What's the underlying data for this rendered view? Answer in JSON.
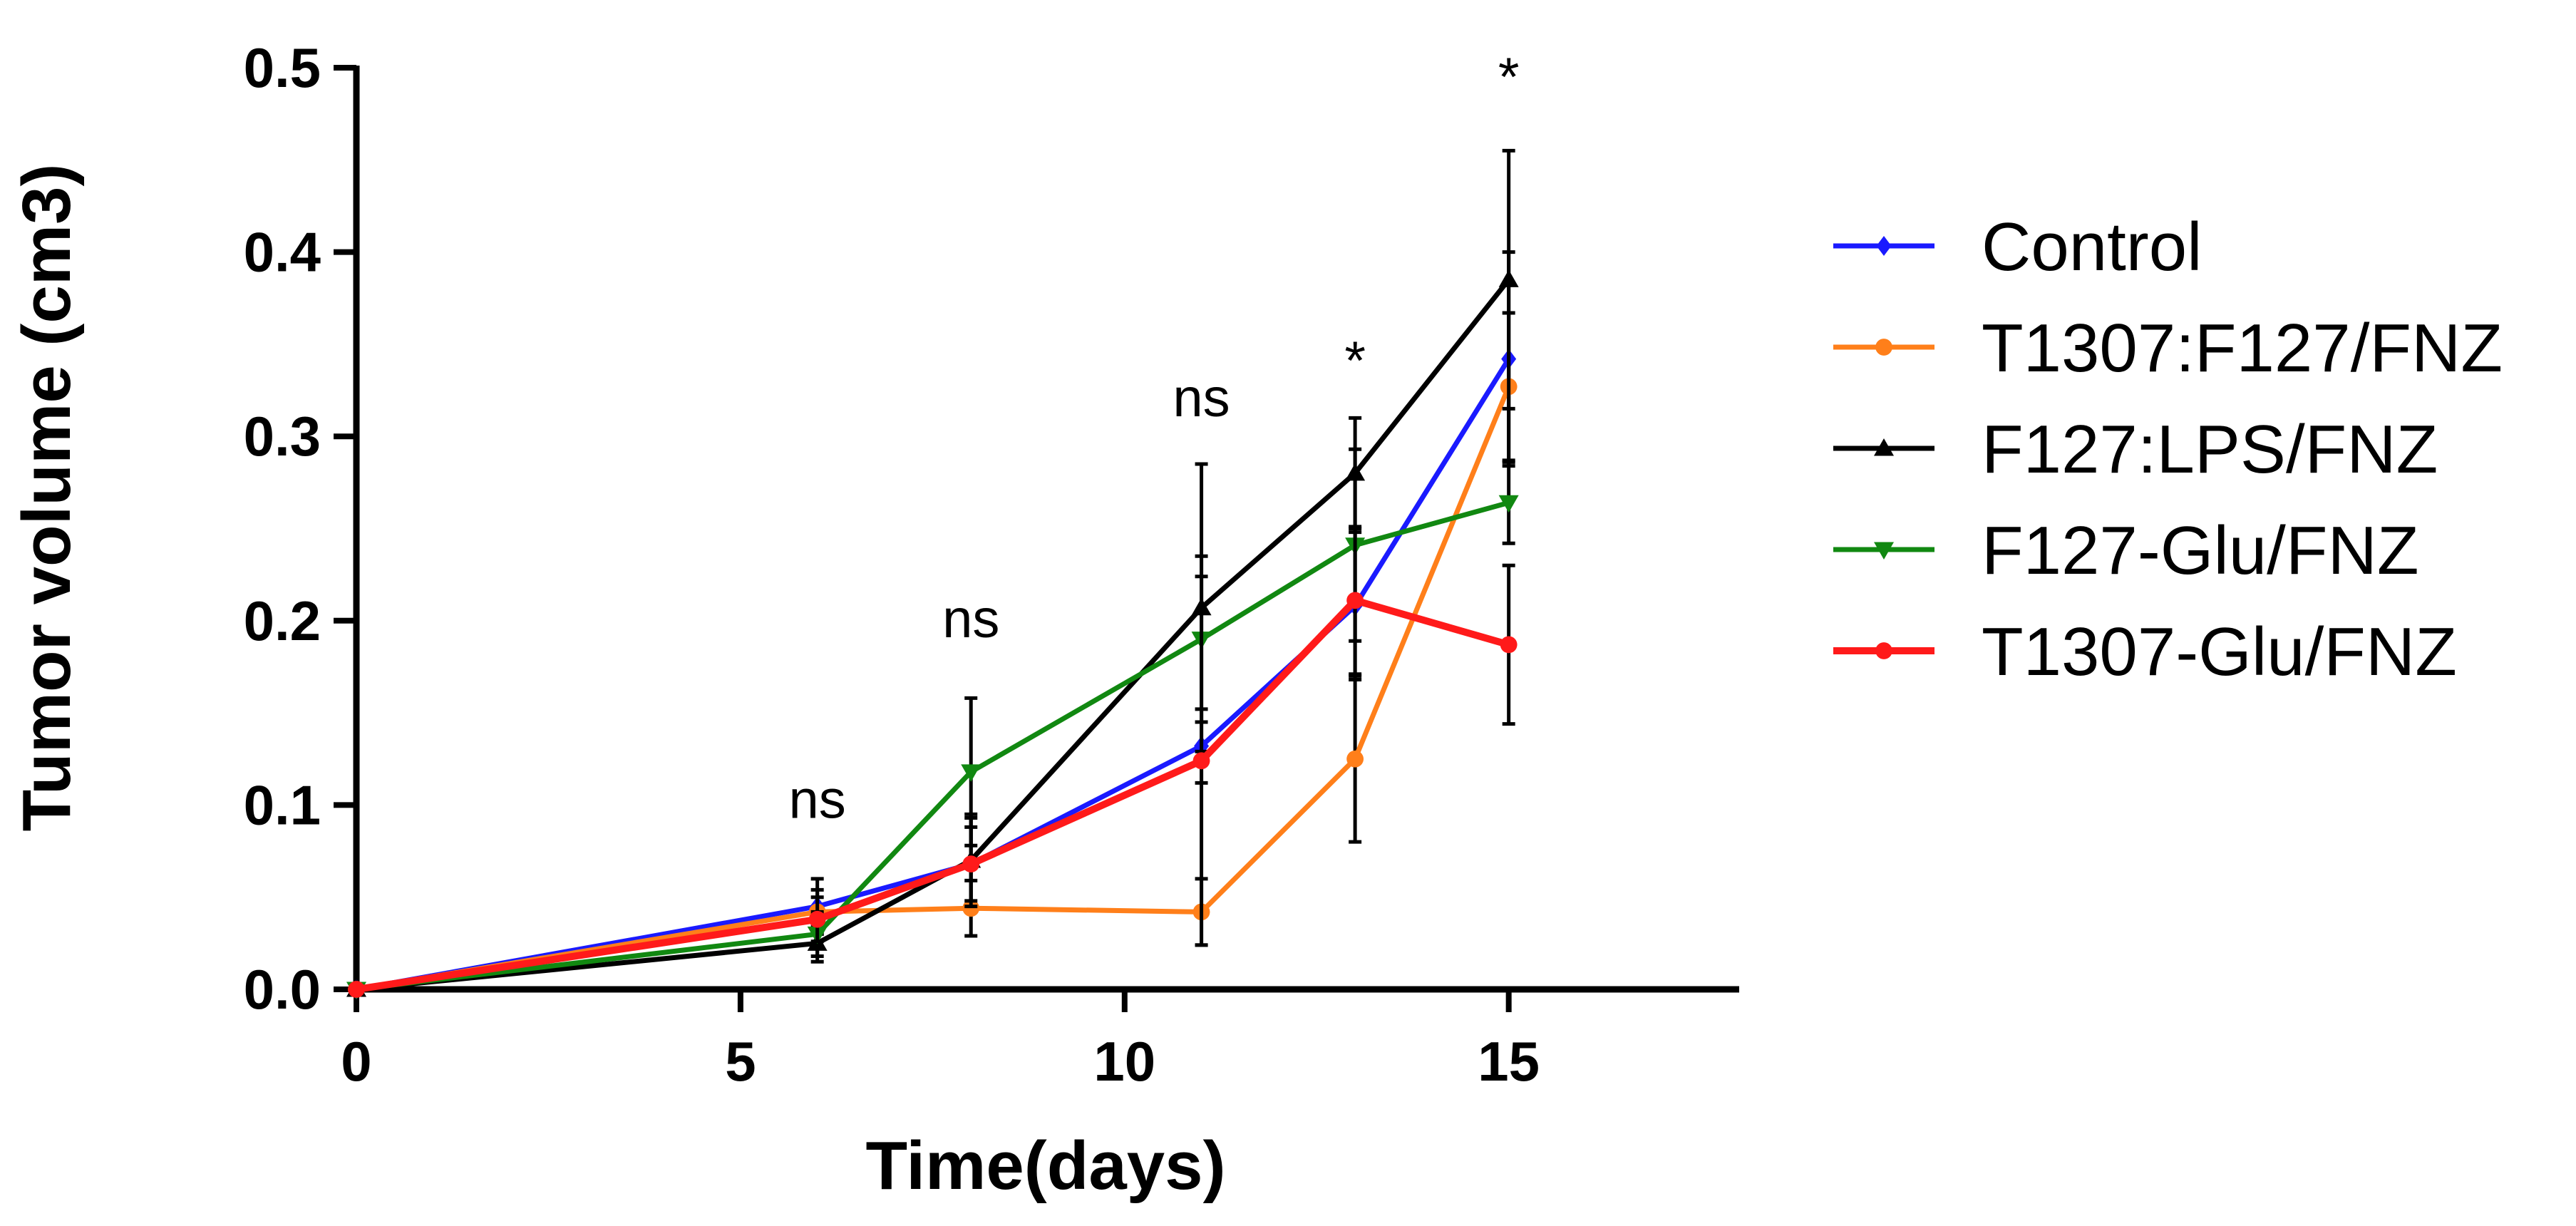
{
  "chart_data": {
    "type": "line",
    "title": "",
    "xlabel": "Time(days)",
    "ylabel": "Tumor volume (cm3)",
    "xlim": [
      0,
      18
    ],
    "ylim": [
      0,
      0.5
    ],
    "xticks": [
      0,
      5,
      10,
      15
    ],
    "xtick_labels": [
      "0",
      "5",
      "10",
      "15"
    ],
    "yticks": [
      0,
      0.1,
      0.2,
      0.3,
      0.4,
      0.5
    ],
    "ytick_labels": [
      "0.0",
      "0.1",
      "0.2",
      "0.3",
      "0.4",
      "0.5"
    ],
    "grid": false,
    "legend_position": "right",
    "x": [
      0,
      6,
      8,
      11,
      13,
      15
    ],
    "series": [
      {
        "name": "Control",
        "color": "#1a1aff",
        "marker": "diamond",
        "values": [
          0,
          0.045,
          0.068,
          0.132,
          0.208,
          0.342
        ],
        "errors": [
          0,
          0.015,
          0.025,
          0.02,
          0.04,
          0.058
        ]
      },
      {
        "name": "T1307:F127/FNZ",
        "color": "#ff7f1a",
        "marker": "circle",
        "values": [
          0,
          0.042,
          0.044,
          0.042,
          0.125,
          0.327
        ],
        "errors": [
          0,
          0.012,
          0.015,
          0.018,
          0.045,
          0.04
        ]
      },
      {
        "name": "F127:LPS/FNZ",
        "color": "#000000",
        "marker": "triangle-up",
        "values": [
          0,
          0.025,
          0.07,
          0.207,
          0.28,
          0.385
        ],
        "errors": [
          0,
          0.01,
          0.025,
          0.078,
          0.03,
          0.07
        ]
      },
      {
        "name": "F127-Glu/FNZ",
        "color": "#118811",
        "marker": "triangle-down",
        "values": [
          0,
          0.03,
          0.118,
          0.19,
          0.241,
          0.264
        ],
        "errors": [
          0,
          0.012,
          0.04,
          0.045,
          0.052,
          0.022
        ]
      },
      {
        "name": "T1307-Glu/FNZ",
        "color": "#ff1a1a",
        "marker": "circle",
        "values": [
          0,
          0.038,
          0.068,
          0.124,
          0.211,
          0.187
        ],
        "errors": [
          0,
          0.012,
          0.02,
          0.1,
          0.04,
          0.043
        ]
      }
    ],
    "annotations": [
      {
        "text": "ns",
        "x": 6,
        "y": 0.093
      },
      {
        "text": "ns",
        "x": 8,
        "y": 0.191
      },
      {
        "text": "ns",
        "x": 11,
        "y": 0.311
      },
      {
        "text": "*",
        "x": 13,
        "y": 0.331
      },
      {
        "text": "*",
        "x": 15,
        "y": 0.485
      }
    ]
  }
}
